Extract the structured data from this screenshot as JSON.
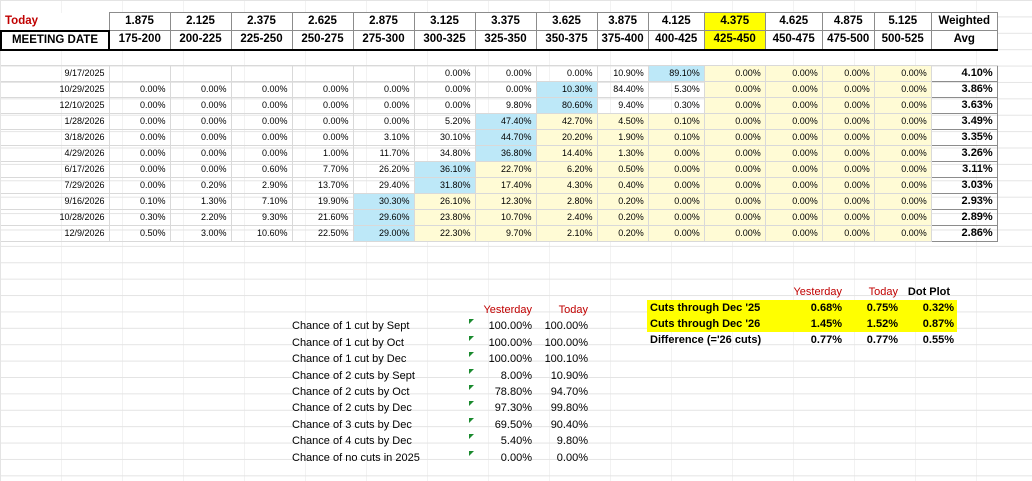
{
  "header": {
    "today_label": "Today",
    "meeting_date_label": "MEETING DATE",
    "rates": [
      "1.875",
      "2.125",
      "2.375",
      "2.625",
      "2.875",
      "3.125",
      "3.375",
      "3.625",
      "3.875",
      "4.125",
      "4.375",
      "4.625",
      "4.875",
      "5.125"
    ],
    "ranges": [
      "175-200",
      "200-225",
      "225-250",
      "250-275",
      "275-300",
      "300-325",
      "325-350",
      "350-375",
      "375-400",
      "400-425",
      "425-450",
      "450-475",
      "475-500",
      "500-525"
    ],
    "weighted_label": "Weighted",
    "avg_label": "Avg"
  },
  "rows": [
    {
      "date": "9/17/2025",
      "cells": [
        "",
        "",
        "",
        "",
        "",
        "0.00%",
        "0.00%",
        "0.00%",
        "10.90%",
        "89.10%",
        "0.00%",
        "0.00%",
        "0.00%",
        "0.00%"
      ],
      "avg": "4.10%"
    },
    {
      "date": "10/29/2025",
      "cells": [
        "0.00%",
        "0.00%",
        "0.00%",
        "0.00%",
        "0.00%",
        "0.00%",
        "0.00%",
        "10.30%",
        "84.40%",
        "5.30%",
        "0.00%",
        "0.00%",
        "0.00%",
        "0.00%"
      ],
      "avg": "3.86%"
    },
    {
      "date": "12/10/2025",
      "cells": [
        "0.00%",
        "0.00%",
        "0.00%",
        "0.00%",
        "0.00%",
        "0.00%",
        "9.80%",
        "80.60%",
        "9.40%",
        "0.30%",
        "0.00%",
        "0.00%",
        "0.00%",
        "0.00%"
      ],
      "avg": "3.63%"
    },
    {
      "date": "1/28/2026",
      "cells": [
        "0.00%",
        "0.00%",
        "0.00%",
        "0.00%",
        "0.00%",
        "5.20%",
        "47.40%",
        "42.70%",
        "4.50%",
        "0.10%",
        "0.00%",
        "0.00%",
        "0.00%",
        "0.00%"
      ],
      "avg": "3.49%"
    },
    {
      "date": "3/18/2026",
      "cells": [
        "0.00%",
        "0.00%",
        "0.00%",
        "0.00%",
        "3.10%",
        "30.10%",
        "44.70%",
        "20.20%",
        "1.90%",
        "0.10%",
        "0.00%",
        "0.00%",
        "0.00%",
        "0.00%"
      ],
      "avg": "3.35%"
    },
    {
      "date": "4/29/2026",
      "cells": [
        "0.00%",
        "0.00%",
        "0.00%",
        "1.00%",
        "11.70%",
        "34.80%",
        "36.80%",
        "14.40%",
        "1.30%",
        "0.00%",
        "0.00%",
        "0.00%",
        "0.00%",
        "0.00%"
      ],
      "avg": "3.26%"
    },
    {
      "date": "6/17/2026",
      "cells": [
        "0.00%",
        "0.00%",
        "0.60%",
        "7.70%",
        "26.20%",
        "36.10%",
        "22.70%",
        "6.20%",
        "0.50%",
        "0.00%",
        "0.00%",
        "0.00%",
        "0.00%",
        "0.00%"
      ],
      "avg": "3.11%"
    },
    {
      "date": "7/29/2026",
      "cells": [
        "0.00%",
        "0.20%",
        "2.90%",
        "13.70%",
        "29.40%",
        "31.80%",
        "17.40%",
        "4.30%",
        "0.40%",
        "0.00%",
        "0.00%",
        "0.00%",
        "0.00%",
        "0.00%"
      ],
      "avg": "3.03%"
    },
    {
      "date": "9/16/2026",
      "cells": [
        "0.10%",
        "1.30%",
        "7.10%",
        "19.90%",
        "30.30%",
        "26.10%",
        "12.30%",
        "2.80%",
        "0.20%",
        "0.00%",
        "0.00%",
        "0.00%",
        "0.00%",
        "0.00%"
      ],
      "avg": "2.93%"
    },
    {
      "date": "10/28/2026",
      "cells": [
        "0.30%",
        "2.20%",
        "9.30%",
        "21.60%",
        "29.60%",
        "23.80%",
        "10.70%",
        "2.40%",
        "0.20%",
        "0.00%",
        "0.00%",
        "0.00%",
        "0.00%",
        "0.00%"
      ],
      "avg": "2.89%"
    },
    {
      "date": "12/9/2026",
      "cells": [
        "0.50%",
        "3.00%",
        "10.60%",
        "22.50%",
        "29.00%",
        "22.30%",
        "9.70%",
        "2.10%",
        "0.20%",
        "0.00%",
        "0.00%",
        "0.00%",
        "0.00%",
        "0.00%"
      ],
      "avg": "2.86%"
    }
  ],
  "chances": {
    "yesterday_label": "Yesterday",
    "today_label": "Today",
    "items": [
      {
        "label": "Chance of 1 cut by Sept",
        "yesterday": "100.00%",
        "today": "100.00%"
      },
      {
        "label": "Chance of 1 cut by Oct",
        "yesterday": "100.00%",
        "today": "100.00%"
      },
      {
        "label": "Chance of 1 cut by Dec",
        "yesterday": "100.00%",
        "today": "100.10%"
      },
      {
        "label": "Chance of 2 cuts by Sept",
        "yesterday": "8.00%",
        "today": "10.90%"
      },
      {
        "label": "Chance of 2 cuts by Oct",
        "yesterday": "78.80%",
        "today": "94.70%"
      },
      {
        "label": "Chance of 2 cuts by Dec",
        "yesterday": "97.30%",
        "today": "99.80%"
      },
      {
        "label": "Chance of 3 cuts by Dec",
        "yesterday": "69.50%",
        "today": "90.40%"
      },
      {
        "label": "Chance of 4 cuts by Dec",
        "yesterday": "5.40%",
        "today": "9.80%"
      },
      {
        "label": "Chance of no cuts in 2025",
        "yesterday": "0.00%",
        "today": "0.00%"
      }
    ]
  },
  "cuts": {
    "yesterday_label": "Yesterday",
    "today_label": "Today",
    "dotplot_label": "Dot Plot",
    "rows": [
      {
        "label": "Cuts through Dec '25",
        "yesterday": "0.68%",
        "today": "0.75%",
        "dotplot": "0.32%"
      },
      {
        "label": "Cuts through Dec '26",
        "yesterday": "1.45%",
        "today": "1.52%",
        "dotplot": "0.87%"
      },
      {
        "label": "Difference (='26 cuts)",
        "yesterday": "0.77%",
        "today": "0.77%",
        "dotplot": "0.55%"
      }
    ]
  },
  "colors": {
    "highlight_yellow": "#ffff00",
    "pale_yellow": "#fffbd5",
    "light_blue": "#bde8f8",
    "red_text": "#c00000",
    "excel_green_triangle": "#1a8a2e"
  }
}
